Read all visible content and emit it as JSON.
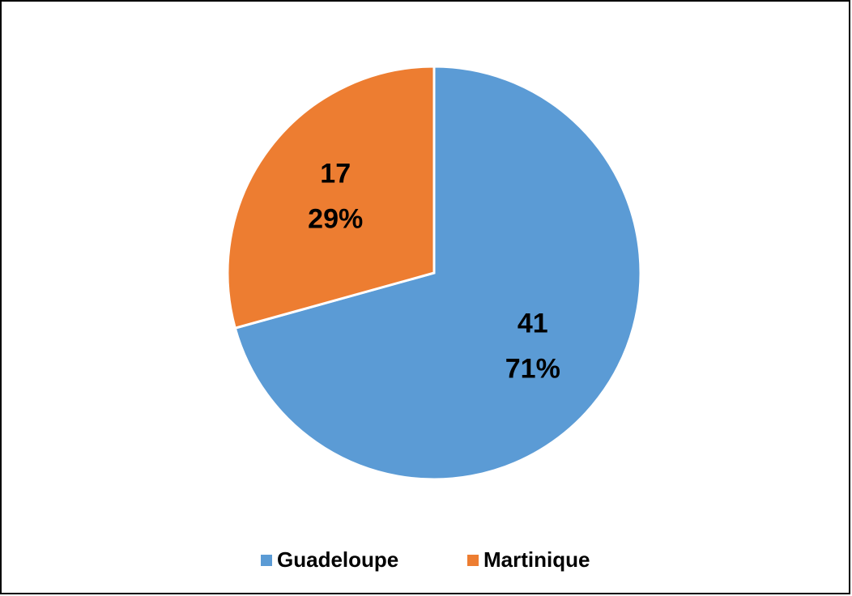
{
  "chart_data": {
    "type": "pie",
    "categories": [
      "Guadeloupe",
      "Martinique"
    ],
    "values": [
      41,
      17
    ],
    "percent_labels": [
      "71%",
      "29%"
    ],
    "colors": [
      "#5b9bd5",
      "#ed7d31"
    ],
    "legend": "bottom"
  }
}
